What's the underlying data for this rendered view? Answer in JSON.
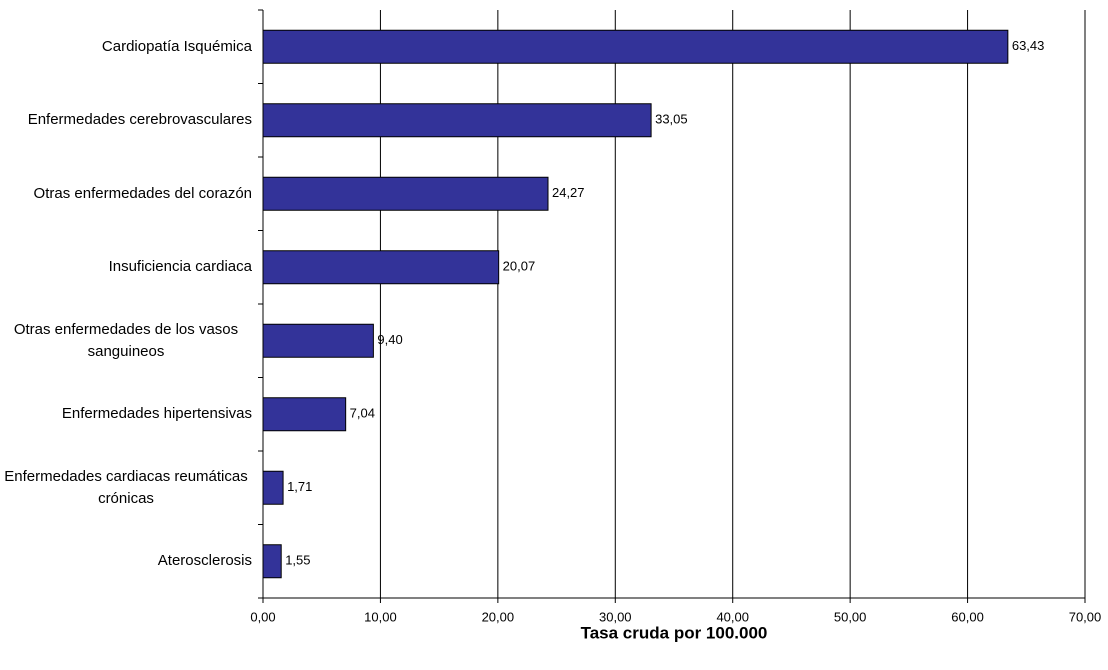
{
  "chart_data": {
    "type": "hbar",
    "xlabel": "Tasa cruda por 100.000",
    "categories": [
      "Cardiopatía Isquémica",
      "Enfermedades cerebrovasculares",
      "Otras enfermedades del corazón",
      "Insuficiencia cardiaca",
      "Otras enfermedades de los vasos sanguineos",
      "Enfermedades hipertensivas",
      "Enfermedades cardiacas reumáticas crónicas",
      "Aterosclerosis"
    ],
    "values": [
      63.43,
      33.05,
      24.27,
      20.07,
      9.4,
      7.04,
      1.71,
      1.55
    ],
    "value_labels": [
      "63,43",
      "33,05",
      "24,27",
      "20,07",
      "9,40",
      "7,04",
      "1,71",
      "1,55"
    ],
    "color": "#333399",
    "xlim": [
      0,
      70
    ],
    "xticks": [
      {
        "value": 0,
        "label": "0,00"
      },
      {
        "value": 10,
        "label": "10,00"
      },
      {
        "value": 20,
        "label": "20,00"
      },
      {
        "value": 30,
        "label": "30,00"
      },
      {
        "value": 40,
        "label": "40,00"
      },
      {
        "value": 50,
        "label": "50,00"
      },
      {
        "value": 60,
        "label": "60,00"
      },
      {
        "value": 70,
        "label": "70,00"
      }
    ],
    "grid": true
  }
}
